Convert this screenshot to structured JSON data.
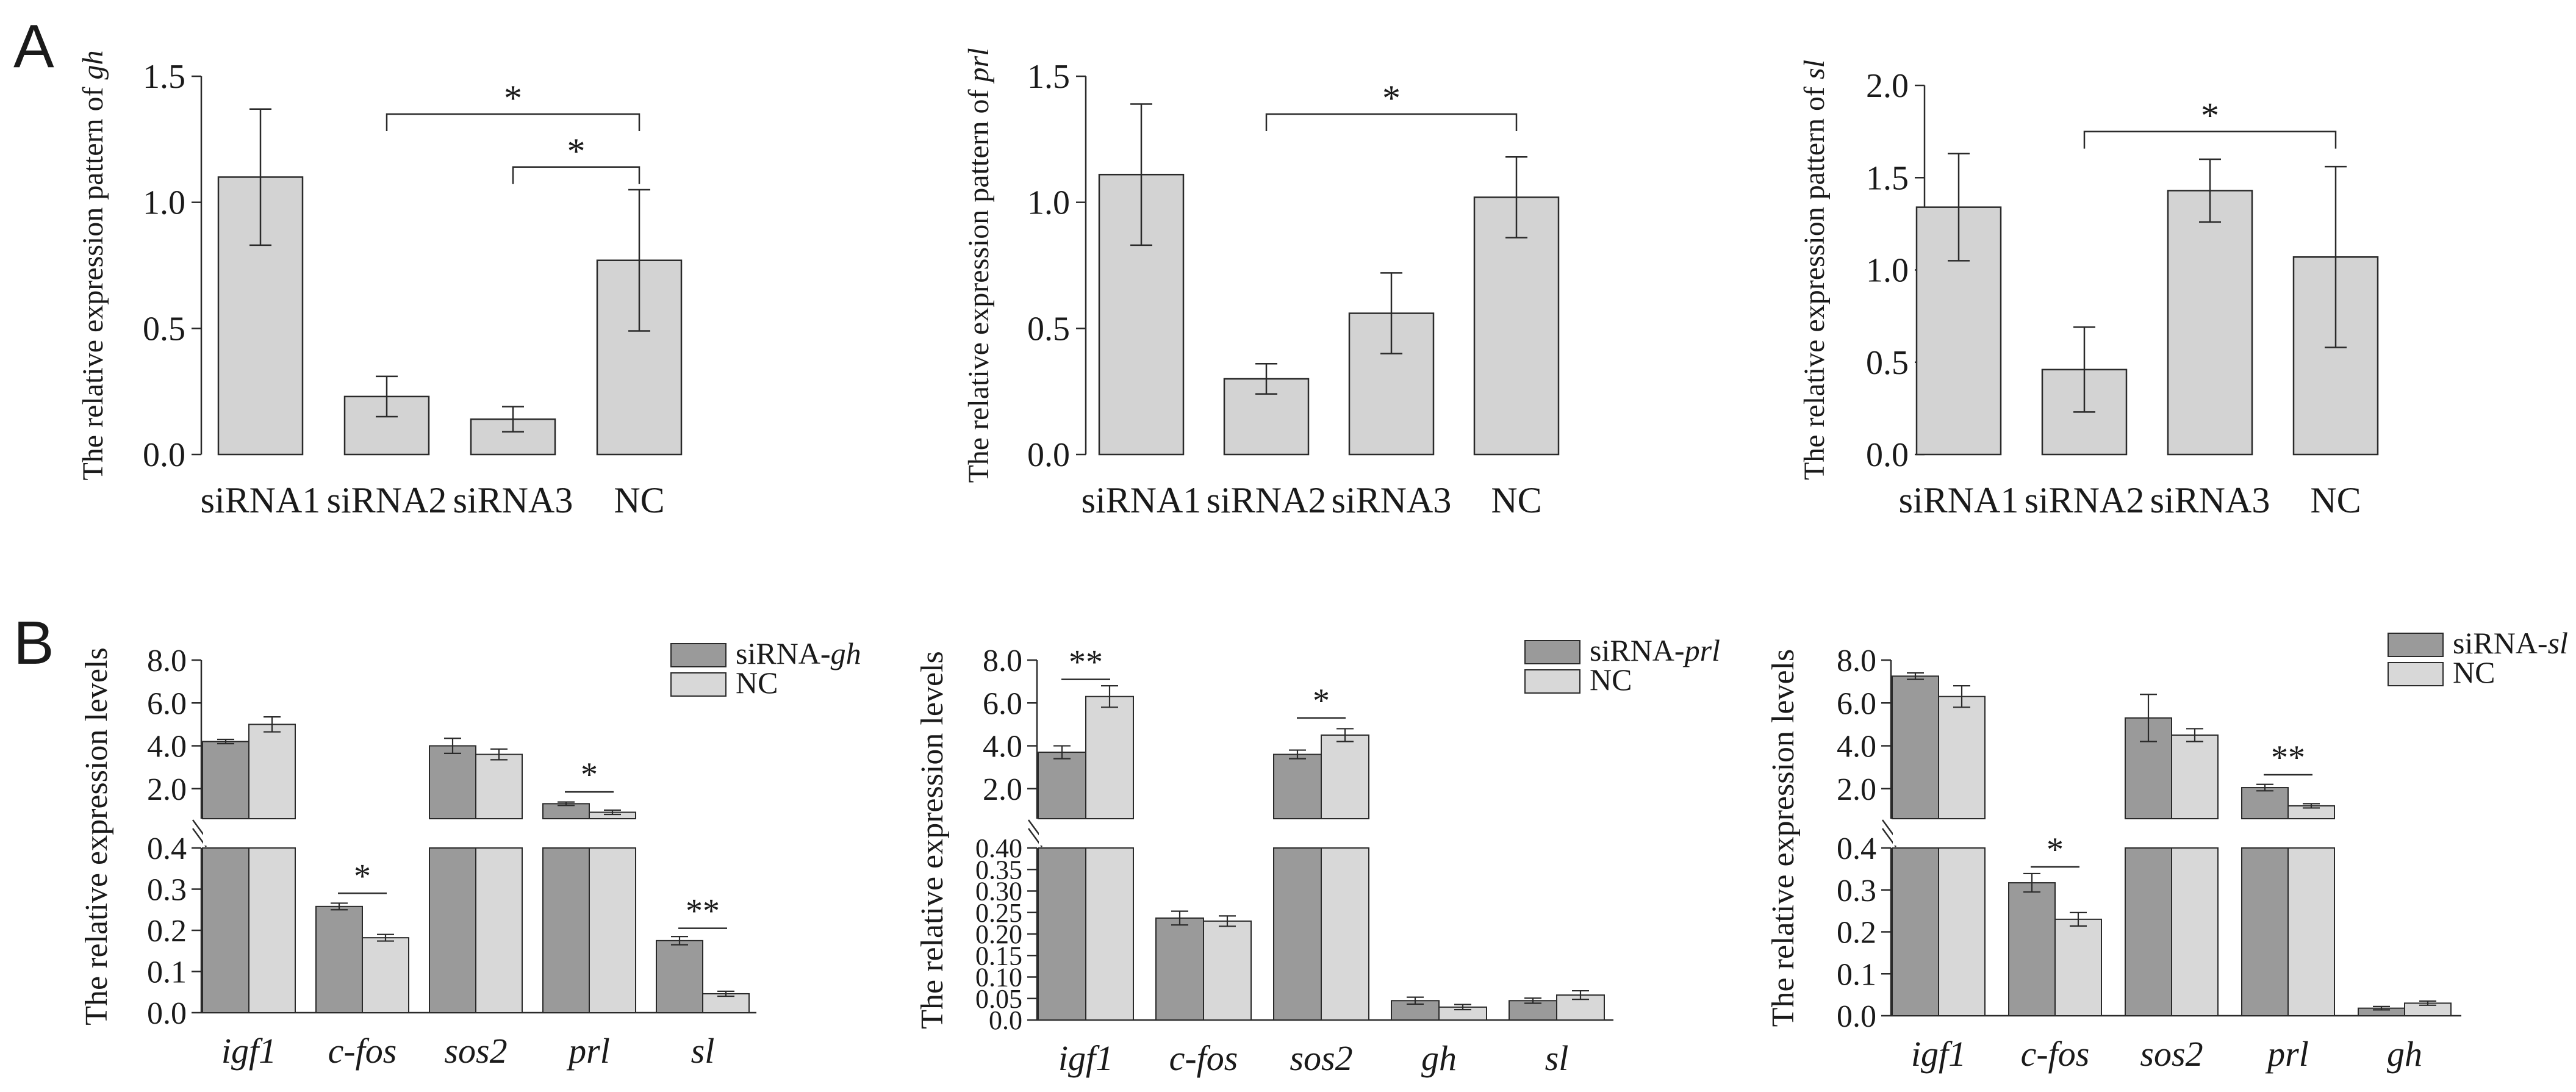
{
  "colors": {
    "barA": "#d3d3d3",
    "barB1": "#9a9a9a",
    "barB2": "#d8d8d8",
    "stroke": "#2a2a2a",
    "background": "#ffffff"
  },
  "panel_labels": [
    "A",
    "B"
  ],
  "chart_data": [
    {
      "type": "bar",
      "ylabel_prefix": "The relative expression pattern of ",
      "ylabel_gene": "gh",
      "categories": [
        "siRNA1",
        "siRNA2",
        "siRNA3",
        "NC"
      ],
      "values": [
        1.1,
        0.23,
        0.14,
        0.77
      ],
      "errors": [
        0.27,
        0.08,
        0.05,
        0.28
      ],
      "ylim": [
        0,
        1.5
      ],
      "yticks": [
        0.0,
        0.5,
        1.0,
        1.5
      ],
      "ytick_labels": [
        "0.0",
        "0.5",
        "1.0",
        "1.5"
      ],
      "significance": [
        {
          "from": 1,
          "to": 3,
          "y": 1.35,
          "label": "*"
        },
        {
          "from": 2,
          "to": 3,
          "y": 1.14,
          "label": "*"
        }
      ]
    },
    {
      "type": "bar",
      "ylabel_prefix": "The relative expression pattern of ",
      "ylabel_gene": "prl",
      "categories": [
        "siRNA1",
        "siRNA2",
        "siRNA3",
        "NC"
      ],
      "values": [
        1.11,
        0.3,
        0.56,
        1.02
      ],
      "errors": [
        0.28,
        0.06,
        0.16,
        0.16
      ],
      "ylim": [
        0,
        1.5
      ],
      "yticks": [
        0.0,
        0.5,
        1.0,
        1.5
      ],
      "ytick_labels": [
        "0.0",
        "0.5",
        "1.0",
        "1.5"
      ],
      "significance": [
        {
          "from": 1,
          "to": 3,
          "y": 1.35,
          "label": "*"
        }
      ]
    },
    {
      "type": "bar",
      "ylabel_prefix": "The relative expression pattern of ",
      "ylabel_gene": "sl",
      "categories": [
        "siRNA1",
        "siRNA2",
        "siRNA3",
        "NC"
      ],
      "values": [
        1.34,
        0.46,
        1.43,
        1.07
      ],
      "errors": [
        0.29,
        0.23,
        0.17,
        0.49
      ],
      "ylim": [
        0,
        2.0
      ],
      "yticks": [
        0.0,
        0.5,
        1.0,
        1.5,
        2.0
      ],
      "ytick_labels": [
        "0.0",
        "0.5",
        "1.0",
        "1.5",
        "2.0"
      ],
      "significance": [
        {
          "from": 1,
          "to": 3,
          "y": 1.75,
          "label": "*"
        }
      ]
    },
    {
      "type": "bar",
      "ylabel": "The relative expression levels",
      "legend": [
        {
          "prefix": "siRNA-",
          "gene": "gh"
        },
        {
          "prefix": "NC",
          "gene": ""
        }
      ],
      "categories": [
        "igf1",
        "c-fos",
        "sos2",
        "prl",
        "sl"
      ],
      "series": [
        {
          "name": "siRNA-gh",
          "values": [
            4.2,
            0.258,
            4.0,
            1.3,
            0.175
          ],
          "errors": [
            0.1,
            0.008,
            0.35,
            0.08,
            0.01
          ]
        },
        {
          "name": "NC",
          "values": [
            5.0,
            0.182,
            3.6,
            0.9,
            0.046
          ],
          "errors": [
            0.35,
            0.008,
            0.25,
            0.1,
            0.006
          ]
        }
      ],
      "lower_range": [
        0,
        0.4
      ],
      "upper_range": [
        0.6,
        8.0
      ],
      "lower_ticks": [
        0.0,
        0.1,
        0.2,
        0.3,
        0.4
      ],
      "lower_tick_labels": [
        "0.0",
        "0.1",
        "0.2",
        "0.3",
        "0.4"
      ],
      "upper_ticks": [
        2.0,
        4.0,
        6.0,
        8.0
      ],
      "upper_tick_labels": [
        "2.0",
        "4.0",
        "6.0",
        "8.0"
      ],
      "significance": [
        {
          "category": 1,
          "label": "*",
          "seg": "low",
          "y": 0.29
        },
        {
          "category": 3,
          "label": "*",
          "seg": "up",
          "y": 1.85
        },
        {
          "category": 4,
          "label": "**",
          "seg": "low",
          "y": 0.205
        }
      ]
    },
    {
      "type": "bar",
      "ylabel": "The relative expression levels",
      "legend": [
        {
          "prefix": "siRNA-",
          "gene": "prl"
        },
        {
          "prefix": "NC",
          "gene": ""
        }
      ],
      "categories": [
        "igf1",
        "c-fos",
        "sos2",
        "gh",
        "sl"
      ],
      "series": [
        {
          "name": "siRNA-prl",
          "values": [
            3.7,
            0.237,
            3.6,
            0.045,
            0.045
          ],
          "errors": [
            0.3,
            0.016,
            0.2,
            0.008,
            0.006
          ]
        },
        {
          "name": "NC",
          "values": [
            6.3,
            0.23,
            4.5,
            0.03,
            0.058
          ],
          "errors": [
            0.5,
            0.012,
            0.3,
            0.006,
            0.01
          ]
        }
      ],
      "lower_range": [
        0,
        0.4
      ],
      "upper_range": [
        0.6,
        8.0
      ],
      "lower_ticks": [
        0.0,
        0.05,
        0.1,
        0.15,
        0.2,
        0.25,
        0.3,
        0.35,
        0.4
      ],
      "lower_tick_labels": [
        "0.0",
        "0.05",
        "0.10",
        "0.15",
        "0.20",
        "0.25",
        "0.30",
        "0.35",
        "0.40"
      ],
      "upper_ticks": [
        2.0,
        4.0,
        6.0,
        8.0
      ],
      "upper_tick_labels": [
        "2.0",
        "4.0",
        "6.0",
        "8.0"
      ],
      "significance": [
        {
          "category": 0,
          "label": "**",
          "seg": "up",
          "y": 7.1
        },
        {
          "category": 2,
          "label": "*",
          "seg": "up",
          "y": 5.3
        }
      ]
    },
    {
      "type": "bar",
      "ylabel": "The relative expression levels",
      "legend": [
        {
          "prefix": "siRNA-",
          "gene": "sl"
        },
        {
          "prefix": "NC",
          "gene": ""
        }
      ],
      "categories": [
        "igf1",
        "c-fos",
        "sos2",
        "prl",
        "gh"
      ],
      "series": [
        {
          "name": "siRNA-sl",
          "values": [
            7.25,
            0.317,
            5.3,
            2.05,
            0.018
          ],
          "errors": [
            0.15,
            0.022,
            1.1,
            0.15,
            0.004
          ]
        },
        {
          "name": "NC",
          "values": [
            6.3,
            0.23,
            4.5,
            1.2,
            0.03
          ],
          "errors": [
            0.5,
            0.016,
            0.3,
            0.1,
            0.005
          ]
        }
      ],
      "lower_range": [
        0,
        0.4
      ],
      "upper_range": [
        0.6,
        8.0
      ],
      "lower_ticks": [
        0.0,
        0.1,
        0.2,
        0.3,
        0.4
      ],
      "lower_tick_labels": [
        "0.0",
        "0.1",
        "0.2",
        "0.3",
        "0.4"
      ],
      "upper_ticks": [
        2.0,
        4.0,
        6.0,
        8.0
      ],
      "upper_tick_labels": [
        "2.0",
        "4.0",
        "6.0",
        "8.0"
      ],
      "significance": [
        {
          "category": 1,
          "label": "*",
          "seg": "low",
          "y": 0.355
        },
        {
          "category": 3,
          "label": "**",
          "seg": "up",
          "y": 2.65
        }
      ]
    }
  ]
}
